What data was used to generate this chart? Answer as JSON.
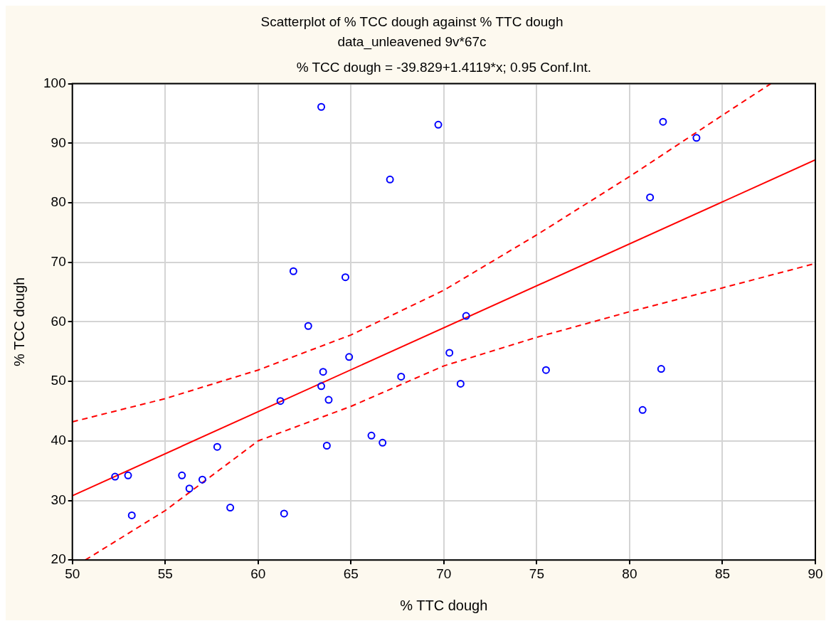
{
  "chart_data": {
    "type": "scatter",
    "title": "Scatterplot of % TCC dough against % TTC dough",
    "subtitle": "data_unleavened 9v*67c",
    "annotations": [
      "% TCC dough = -39.829+1.4119*x; 0.95 Conf.Int."
    ],
    "xlabel": "% TTC dough",
    "ylabel": "% TCC dough",
    "xlim": [
      50,
      90
    ],
    "ylim": [
      20,
      100
    ],
    "xticks": [
      50,
      55,
      60,
      65,
      70,
      75,
      80,
      85,
      90
    ],
    "yticks": [
      20,
      30,
      40,
      50,
      60,
      70,
      80,
      90,
      100
    ],
    "grid": true,
    "legend": false,
    "marker": "circle",
    "series": [
      {
        "color": "#0000ff",
        "x": [
          63.4,
          61.9,
          64.7,
          62.7,
          69.7,
          67.1,
          81.8,
          83.6,
          81.1,
          71.2,
          70.3,
          64.9,
          63.5,
          63.4,
          63.8,
          61.2,
          63.7,
          57.8,
          52.3,
          53.0,
          55.9,
          57.0,
          56.3,
          58.5,
          61.4,
          53.2,
          67.7,
          70.9,
          66.1,
          66.7,
          75.5,
          80.7,
          81.7
        ],
        "values": [
          96.1,
          68.5,
          67.5,
          59.3,
          93.1,
          83.9,
          93.6,
          90.9,
          80.9,
          61.0,
          54.8,
          54.1,
          51.6,
          49.2,
          46.9,
          46.7,
          39.2,
          39.0,
          34.0,
          34.2,
          34.2,
          33.5,
          32.0,
          28.8,
          27.8,
          27.5,
          50.8,
          49.6,
          40.9,
          39.7,
          51.9,
          45.2,
          52.1
        ]
      },
      {
        "type": "line",
        "color": "#ff0000",
        "line_style": "solid",
        "marker": "none",
        "x": [
          50,
          90
        ],
        "values": [
          30.8,
          87.2
        ]
      },
      {
        "type": "line",
        "color": "#ff0000",
        "line_style": "dashed",
        "marker": "none",
        "x": [
          50,
          55,
          60,
          65,
          70,
          75,
          80,
          85,
          87.6
        ],
        "values": [
          43.2,
          47.1,
          51.9,
          57.8,
          65.3,
          74.6,
          84.4,
          94.7,
          100
        ]
      },
      {
        "type": "line",
        "color": "#ff0000",
        "line_style": "dashed",
        "marker": "none",
        "x": [
          50.7,
          55,
          60,
          65,
          70,
          75,
          80,
          85,
          90
        ],
        "values": [
          20,
          28.3,
          40.0,
          45.8,
          52.6,
          57.4,
          61.7,
          65.7,
          69.8
        ]
      }
    ]
  }
}
